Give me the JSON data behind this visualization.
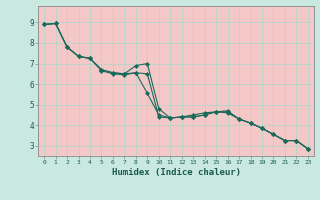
{
  "xlabel": "Humidex (Indice chaleur)",
  "background_color": "#c8e8e0",
  "plot_bg_color": "#f5c8c8",
  "grid_color": "#aad8cc",
  "line_color": "#1a6a5a",
  "xlim": [
    -0.5,
    23.5
  ],
  "ylim": [
    2.5,
    9.8
  ],
  "yticks": [
    3,
    4,
    5,
    6,
    7,
    8,
    9
  ],
  "xticks": [
    0,
    1,
    2,
    3,
    4,
    5,
    6,
    7,
    8,
    9,
    10,
    11,
    12,
    13,
    14,
    15,
    16,
    17,
    18,
    19,
    20,
    21,
    22,
    23
  ],
  "series1_x": [
    0,
    1,
    2,
    3,
    4,
    5,
    6,
    7,
    8,
    9,
    10,
    11,
    12,
    13,
    14,
    15,
    16,
    17,
    18,
    19,
    20,
    21,
    22,
    23
  ],
  "series1_y": [
    8.9,
    8.95,
    7.8,
    7.35,
    7.25,
    6.65,
    6.5,
    6.45,
    6.55,
    6.5,
    4.4,
    4.35,
    4.4,
    4.4,
    4.5,
    4.65,
    4.7,
    4.3,
    4.1,
    3.85,
    3.55,
    3.25,
    3.25,
    2.85
  ],
  "series2_x": [
    0,
    1,
    2,
    3,
    4,
    5,
    6,
    7,
    8,
    9,
    10,
    11,
    12,
    13,
    14,
    15,
    16,
    17,
    18,
    19,
    20,
    21,
    22,
    23
  ],
  "series2_y": [
    8.9,
    8.95,
    7.8,
    7.35,
    7.25,
    6.7,
    6.55,
    6.5,
    6.9,
    7.0,
    4.8,
    4.35,
    4.4,
    4.5,
    4.6,
    4.65,
    4.65,
    4.3,
    4.1,
    3.85,
    3.55,
    3.25,
    3.25,
    2.85
  ],
  "series3_x": [
    0,
    1,
    2,
    3,
    4,
    5,
    6,
    7,
    8,
    9,
    10,
    11,
    12,
    13,
    14,
    15,
    16,
    17,
    18,
    19,
    20,
    21,
    22,
    23
  ],
  "series3_y": [
    8.9,
    8.95,
    7.8,
    7.35,
    7.25,
    6.7,
    6.55,
    6.5,
    6.55,
    5.55,
    4.5,
    4.35,
    4.4,
    4.4,
    4.5,
    4.65,
    4.6,
    4.3,
    4.1,
    3.85,
    3.55,
    3.25,
    3.25,
    2.85
  ]
}
